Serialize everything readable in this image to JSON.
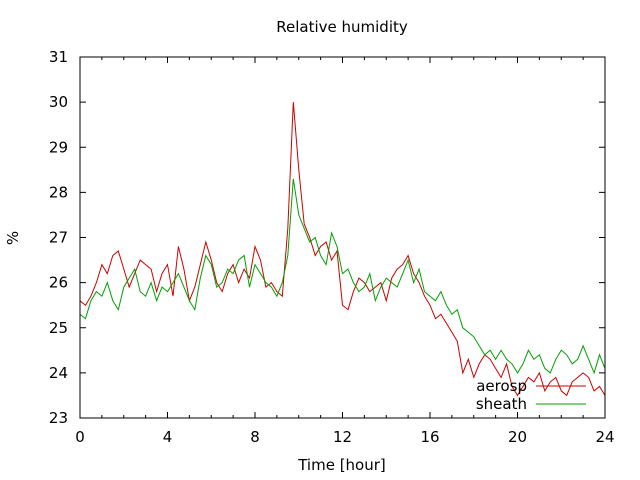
{
  "chart_data": {
    "type": "line",
    "title": "Relative humidity",
    "xlabel": "Time [hour]",
    "ylabel": "%",
    "xlim": [
      0,
      24
    ],
    "ylim": [
      23,
      31
    ],
    "xticks": [
      0,
      4,
      8,
      12,
      16,
      20,
      24
    ],
    "yticks": [
      23,
      24,
      25,
      26,
      27,
      28,
      29,
      30,
      31
    ],
    "legend": "bottom-right",
    "grid": false,
    "series": [
      {
        "name": "aerosp",
        "color": "#cc0000",
        "x": [
          0,
          0.25,
          0.5,
          0.75,
          1,
          1.25,
          1.5,
          1.75,
          2,
          2.25,
          2.5,
          2.75,
          3,
          3.25,
          3.5,
          3.75,
          4,
          4.25,
          4.5,
          4.75,
          5,
          5.25,
          5.5,
          5.75,
          6,
          6.25,
          6.5,
          6.75,
          7,
          7.25,
          7.5,
          7.75,
          8,
          8.25,
          8.5,
          8.75,
          9,
          9.25,
          9.5,
          9.75,
          10,
          10.25,
          10.5,
          10.75,
          11,
          11.25,
          11.5,
          11.75,
          12,
          12.25,
          12.5,
          12.75,
          13,
          13.25,
          13.5,
          13.75,
          14,
          14.25,
          14.5,
          14.75,
          15,
          15.25,
          15.5,
          15.75,
          16,
          16.25,
          16.5,
          16.75,
          17,
          17.25,
          17.5,
          17.75,
          18,
          18.25,
          18.5,
          18.75,
          19,
          19.25,
          19.5,
          19.75,
          20,
          20.25,
          20.5,
          20.75,
          21,
          21.25,
          21.5,
          21.75,
          22,
          22.25,
          22.5,
          22.75,
          23,
          23.25,
          23.5,
          23.75,
          24
        ],
        "values": [
          25.6,
          25.5,
          25.7,
          26.0,
          26.4,
          26.2,
          26.6,
          26.7,
          26.3,
          25.9,
          26.2,
          26.5,
          26.4,
          26.3,
          25.8,
          26.2,
          26.4,
          25.7,
          26.8,
          26.3,
          25.6,
          25.9,
          26.4,
          26.9,
          26.5,
          26.0,
          25.8,
          26.2,
          26.4,
          26.0,
          26.3,
          26.1,
          26.8,
          26.5,
          25.9,
          26.0,
          25.8,
          25.7,
          27.2,
          30.0,
          28.5,
          27.3,
          27.0,
          26.6,
          26.8,
          26.9,
          26.5,
          26.7,
          25.5,
          25.4,
          25.8,
          26.1,
          26.0,
          25.8,
          25.9,
          26.0,
          25.6,
          26.1,
          26.3,
          26.4,
          26.6,
          26.2,
          26.0,
          25.7,
          25.5,
          25.2,
          25.3,
          25.1,
          24.9,
          24.7,
          24.0,
          24.3,
          23.9,
          24.2,
          24.4,
          24.3,
          24.1,
          23.9,
          24.2,
          23.7,
          23.5,
          23.7,
          23.9,
          23.8,
          24.0,
          23.6,
          23.8,
          23.9,
          23.6,
          23.5,
          23.8,
          23.9,
          24.0,
          23.9,
          23.6,
          23.7,
          23.5
        ]
      },
      {
        "name": "sheath",
        "color": "#00a000",
        "x": [
          0,
          0.25,
          0.5,
          0.75,
          1,
          1.25,
          1.5,
          1.75,
          2,
          2.25,
          2.5,
          2.75,
          3,
          3.25,
          3.5,
          3.75,
          4,
          4.25,
          4.5,
          4.75,
          5,
          5.25,
          5.5,
          5.75,
          6,
          6.25,
          6.5,
          6.75,
          7,
          7.25,
          7.5,
          7.75,
          8,
          8.25,
          8.5,
          8.75,
          9,
          9.25,
          9.5,
          9.75,
          10,
          10.25,
          10.5,
          10.75,
          11,
          11.25,
          11.5,
          11.75,
          12,
          12.25,
          12.5,
          12.75,
          13,
          13.25,
          13.5,
          13.75,
          14,
          14.25,
          14.5,
          14.75,
          15,
          15.25,
          15.5,
          15.75,
          16,
          16.25,
          16.5,
          16.75,
          17,
          17.25,
          17.5,
          17.75,
          18,
          18.25,
          18.5,
          18.75,
          19,
          19.25,
          19.5,
          19.75,
          20,
          20.25,
          20.5,
          20.75,
          21,
          21.25,
          21.5,
          21.75,
          22,
          22.25,
          22.5,
          22.75,
          23,
          23.25,
          23.5,
          23.75,
          24
        ],
        "values": [
          25.3,
          25.2,
          25.6,
          25.8,
          25.7,
          26.0,
          25.6,
          25.4,
          25.9,
          26.1,
          26.3,
          25.8,
          25.7,
          26.0,
          25.6,
          25.9,
          25.8,
          26.0,
          26.2,
          25.9,
          25.6,
          25.4,
          26.1,
          26.6,
          26.4,
          25.9,
          26.0,
          26.3,
          26.2,
          26.5,
          26.6,
          25.9,
          26.4,
          26.2,
          26.0,
          25.9,
          25.7,
          26.0,
          26.6,
          28.3,
          27.5,
          27.2,
          26.9,
          27.0,
          26.6,
          26.4,
          27.1,
          26.8,
          26.2,
          26.3,
          26.0,
          25.8,
          25.9,
          26.2,
          25.6,
          25.9,
          26.1,
          26.0,
          25.9,
          26.2,
          26.5,
          26.0,
          26.3,
          25.8,
          25.7,
          25.6,
          25.8,
          25.5,
          25.3,
          25.4,
          25.0,
          24.9,
          24.8,
          24.6,
          24.4,
          24.5,
          24.3,
          24.5,
          24.3,
          24.2,
          24.0,
          24.2,
          24.5,
          24.3,
          24.4,
          24.1,
          24.0,
          24.3,
          24.5,
          24.4,
          24.2,
          24.3,
          24.6,
          24.3,
          24.0,
          24.4,
          24.1
        ]
      }
    ]
  }
}
